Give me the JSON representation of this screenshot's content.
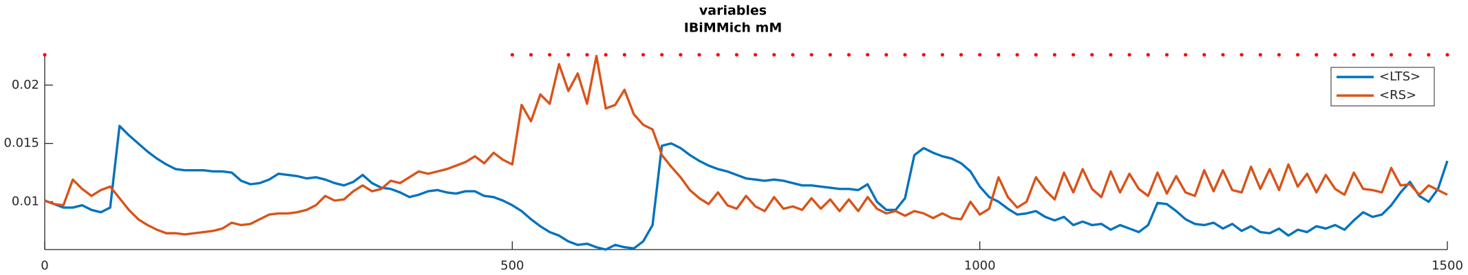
{
  "chart_data": {
    "type": "line",
    "title": "variables",
    "subtitle": "IBiMMich mM",
    "x": [
      0,
      10,
      20,
      30,
      40,
      50,
      60,
      70,
      80,
      90,
      100,
      110,
      120,
      130,
      140,
      150,
      160,
      170,
      180,
      190,
      200,
      210,
      220,
      230,
      240,
      250,
      260,
      270,
      280,
      290,
      300,
      310,
      320,
      330,
      340,
      350,
      360,
      370,
      380,
      390,
      400,
      410,
      420,
      430,
      440,
      450,
      460,
      470,
      480,
      490,
      500,
      510,
      520,
      530,
      540,
      550,
      560,
      570,
      580,
      590,
      600,
      610,
      620,
      630,
      640,
      650,
      660,
      670,
      680,
      690,
      700,
      710,
      720,
      730,
      740,
      750,
      760,
      770,
      780,
      790,
      800,
      810,
      820,
      830,
      840,
      850,
      860,
      870,
      880,
      890,
      900,
      910,
      920,
      930,
      940,
      950,
      960,
      970,
      980,
      990,
      1000,
      1010,
      1020,
      1030,
      1040,
      1050,
      1060,
      1070,
      1080,
      1090,
      1100,
      1110,
      1120,
      1130,
      1140,
      1150,
      1160,
      1170,
      1180,
      1190,
      1200,
      1210,
      1220,
      1230,
      1240,
      1250,
      1260,
      1270,
      1280,
      1290,
      1300,
      1310,
      1320,
      1330,
      1340,
      1350,
      1360,
      1370,
      1380,
      1390,
      1400,
      1410,
      1420,
      1430,
      1440,
      1450,
      1460,
      1470,
      1480,
      1490,
      1500
    ],
    "series": [
      {
        "name": "<LTS>",
        "color": "#0072bd",
        "values": [
          0.0101,
          0.0098,
          0.0095,
          0.0095,
          0.0097,
          0.0093,
          0.0091,
          0.0095,
          0.0165,
          0.0157,
          0.015,
          0.0143,
          0.0137,
          0.0132,
          0.0128,
          0.0127,
          0.0127,
          0.0127,
          0.0126,
          0.0126,
          0.0125,
          0.0118,
          0.0115,
          0.0116,
          0.0119,
          0.0124,
          0.0123,
          0.0122,
          0.012,
          0.0121,
          0.0119,
          0.0116,
          0.0114,
          0.0117,
          0.0123,
          0.0116,
          0.0112,
          0.0111,
          0.0108,
          0.0104,
          0.0106,
          0.0109,
          0.011,
          0.0108,
          0.0107,
          0.0109,
          0.0109,
          0.0105,
          0.0104,
          0.0101,
          0.0097,
          0.0092,
          0.0085,
          0.0079,
          0.0074,
          0.0071,
          0.0066,
          0.0063,
          0.0064,
          0.0061,
          0.0059,
          0.0063,
          0.0061,
          0.006,
          0.0066,
          0.008,
          0.0148,
          0.015,
          0.0146,
          0.014,
          0.0135,
          0.0131,
          0.0128,
          0.0126,
          0.0123,
          0.012,
          0.0119,
          0.0118,
          0.0119,
          0.0118,
          0.0116,
          0.0114,
          0.0114,
          0.0113,
          0.0112,
          0.0111,
          0.0111,
          0.011,
          0.0115,
          0.01,
          0.0093,
          0.0093,
          0.0103,
          0.014,
          0.0146,
          0.0142,
          0.0139,
          0.0137,
          0.0133,
          0.0126,
          0.0113,
          0.0104,
          0.01,
          0.0094,
          0.0089,
          0.009,
          0.0092,
          0.0087,
          0.0084,
          0.0087,
          0.008,
          0.0083,
          0.008,
          0.0081,
          0.0076,
          0.008,
          0.0077,
          0.0074,
          0.008,
          0.0099,
          0.0098,
          0.0092,
          0.0085,
          0.0081,
          0.008,
          0.0082,
          0.0077,
          0.0081,
          0.0075,
          0.0079,
          0.0074,
          0.0073,
          0.0077,
          0.0071,
          0.0076,
          0.0074,
          0.0079,
          0.0077,
          0.008,
          0.0076,
          0.0084,
          0.0091,
          0.0087,
          0.0089,
          0.0097,
          0.0108,
          0.0117,
          0.0105,
          0.01,
          0.0111,
          0.0135
        ]
      },
      {
        "name": "<RS>",
        "color": "#d95319",
        "values": [
          0.0101,
          0.0098,
          0.0097,
          0.0119,
          0.0111,
          0.0105,
          0.011,
          0.0113,
          0.0103,
          0.0093,
          0.0085,
          0.008,
          0.0076,
          0.0073,
          0.0073,
          0.0072,
          0.0073,
          0.0074,
          0.0075,
          0.0077,
          0.0082,
          0.008,
          0.0081,
          0.0085,
          0.0089,
          0.009,
          0.009,
          0.0091,
          0.0093,
          0.0097,
          0.0105,
          0.0101,
          0.0102,
          0.0109,
          0.0114,
          0.0109,
          0.0111,
          0.0118,
          0.0116,
          0.0121,
          0.0126,
          0.0124,
          0.0126,
          0.0128,
          0.0131,
          0.0134,
          0.0139,
          0.0133,
          0.0142,
          0.0136,
          0.0132,
          0.0183,
          0.0169,
          0.0192,
          0.0184,
          0.0218,
          0.0195,
          0.021,
          0.0184,
          0.0225,
          0.018,
          0.0183,
          0.0196,
          0.0175,
          0.0166,
          0.0162,
          0.014,
          0.013,
          0.0121,
          0.011,
          0.0103,
          0.0098,
          0.0108,
          0.0097,
          0.0094,
          0.0105,
          0.0096,
          0.0092,
          0.0104,
          0.0094,
          0.0096,
          0.0093,
          0.0103,
          0.0094,
          0.0102,
          0.0092,
          0.0102,
          0.0092,
          0.0104,
          0.0094,
          0.009,
          0.0092,
          0.0088,
          0.0092,
          0.009,
          0.0086,
          0.009,
          0.0086,
          0.0085,
          0.01,
          0.0089,
          0.0094,
          0.0121,
          0.0104,
          0.0095,
          0.01,
          0.0121,
          0.011,
          0.0102,
          0.0125,
          0.0108,
          0.0128,
          0.0111,
          0.0104,
          0.0126,
          0.0108,
          0.0124,
          0.0111,
          0.0105,
          0.0125,
          0.0107,
          0.0122,
          0.0108,
          0.0105,
          0.0127,
          0.0109,
          0.0127,
          0.011,
          0.0108,
          0.013,
          0.0111,
          0.0128,
          0.011,
          0.0132,
          0.0113,
          0.0124,
          0.0108,
          0.0123,
          0.0111,
          0.0106,
          0.0125,
          0.0111,
          0.011,
          0.0108,
          0.0129,
          0.0114,
          0.0115,
          0.0106,
          0.0114,
          0.011,
          0.0106
        ]
      }
    ],
    "markers": {
      "color": "#ff0000",
      "x": [
        0,
        500,
        520,
        540,
        560,
        580,
        600,
        620,
        640,
        660,
        680,
        700,
        720,
        740,
        760,
        780,
        800,
        820,
        840,
        860,
        880,
        900,
        920,
        940,
        960,
        980,
        1000,
        1020,
        1040,
        1060,
        1080,
        1100,
        1120,
        1140,
        1160,
        1180,
        1200,
        1220,
        1240,
        1260,
        1280,
        1300,
        1320,
        1340,
        1360,
        1380,
        1400,
        1420,
        1440,
        1460,
        1480,
        1500
      ],
      "values": [
        0.0226,
        0.0226,
        0.0226,
        0.0226,
        0.0226,
        0.0226,
        0.0226,
        0.0226,
        0.0226,
        0.0226,
        0.0226,
        0.0226,
        0.0226,
        0.0226,
        0.0226,
        0.0226,
        0.0226,
        0.0226,
        0.0226,
        0.0226,
        0.0226,
        0.0226,
        0.0226,
        0.0226,
        0.0226,
        0.0226,
        0.0226,
        0.0226,
        0.0226,
        0.0226,
        0.0226,
        0.0226,
        0.0226,
        0.0226,
        0.0226,
        0.0226,
        0.0226,
        0.0226,
        0.0226,
        0.0226,
        0.0226,
        0.0226,
        0.0226,
        0.0226,
        0.0226,
        0.0226,
        0.0226,
        0.0226,
        0.0226,
        0.0226,
        0.0226,
        0.0226
      ]
    },
    "xlim": [
      0,
      1500
    ],
    "xticks": [
      0,
      500,
      1000,
      1500
    ],
    "ylim": [
      0.0059,
      0.0227
    ],
    "yticks": [
      0.01,
      0.015,
      0.02
    ],
    "legend": "upper right"
  }
}
